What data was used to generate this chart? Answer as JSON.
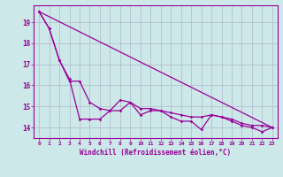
{
  "xlabel": "Windchill (Refroidissement éolien,°C)",
  "bg_color": "#cce8e8",
  "line_color": "#990099",
  "grid_color": "#b0b8cc",
  "xlim": [
    -0.5,
    23.5
  ],
  "ylim": [
    13.5,
    19.8
  ],
  "xticks": [
    0,
    1,
    2,
    3,
    4,
    5,
    6,
    7,
    8,
    9,
    10,
    11,
    12,
    13,
    14,
    15,
    16,
    17,
    18,
    19,
    20,
    21,
    22,
    23
  ],
  "yticks": [
    14,
    15,
    16,
    17,
    18,
    19
  ],
  "line1": [
    19.5,
    18.7,
    17.2,
    16.3,
    14.4,
    14.4,
    14.4,
    14.8,
    15.3,
    15.2,
    14.6,
    14.8,
    14.8,
    14.5,
    14.3,
    14.3,
    13.9,
    14.6,
    14.5,
    14.3,
    14.1,
    14.0,
    13.8,
    14.0
  ],
  "line2": [
    19.5,
    18.7,
    17.2,
    16.2,
    16.2,
    15.2,
    14.9,
    14.8,
    14.8,
    15.2,
    14.9,
    14.9,
    14.8,
    14.7,
    14.6,
    14.5,
    14.5,
    14.6,
    14.5,
    14.4,
    14.2,
    14.1,
    14.1,
    14.0
  ],
  "trend_x": [
    0,
    23
  ],
  "trend_y": [
    19.5,
    14.0
  ]
}
